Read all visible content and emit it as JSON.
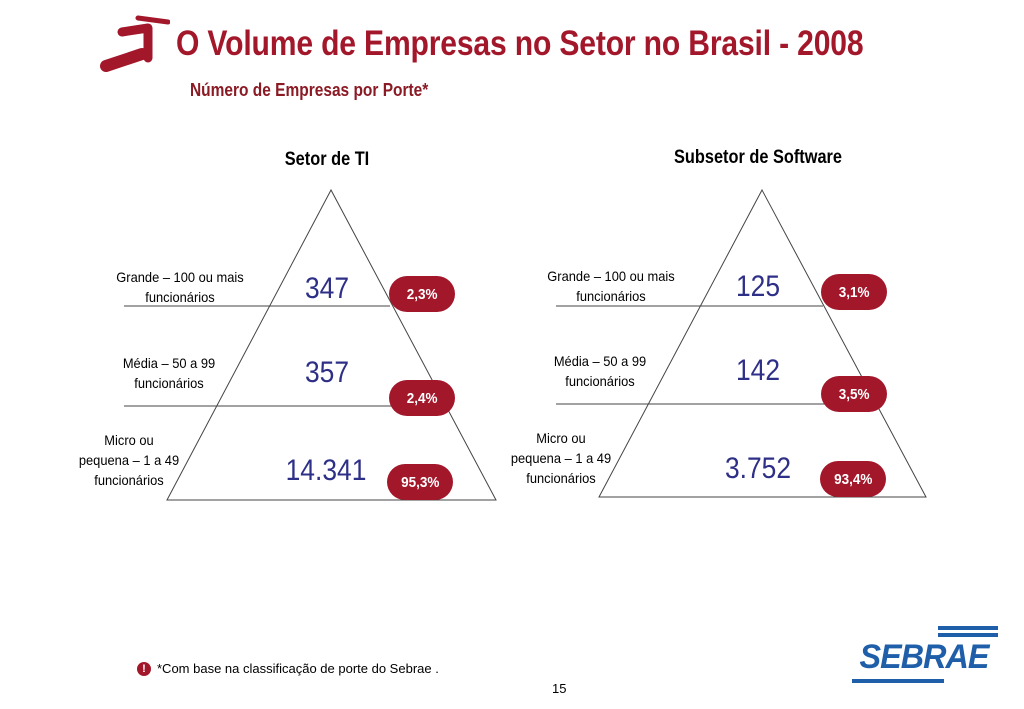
{
  "header": {
    "title": "O Volume de Empresas no Setor no Brasil - 2008",
    "subtitle": "Número de Empresas por Porte*"
  },
  "colors": {
    "accent": "#a3172b",
    "count_text": "#2e2f86",
    "logo_blue": "#1f5ea8"
  },
  "pyramids": [
    {
      "title": "Setor de TI",
      "levels": [
        {
          "label_line1": "Grande – 100 ou mais",
          "label_line2": "funcionários",
          "label_line3": "",
          "count": "347",
          "share": "2,3%"
        },
        {
          "label_line1": "Média – 50 a 99",
          "label_line2": "funcionários",
          "label_line3": "",
          "count": "357",
          "share": "2,4%"
        },
        {
          "label_line1": "Micro ou",
          "label_line2": "pequena – 1 a 49",
          "label_line3": "funcionários",
          "count": "14.341",
          "share": "95,3%"
        }
      ]
    },
    {
      "title": "Subsetor de Software",
      "levels": [
        {
          "label_line1": "Grande – 100 ou mais",
          "label_line2": "funcionários",
          "label_line3": "",
          "count": "125",
          "share": "3,1%"
        },
        {
          "label_line1": "Média – 50 a 99",
          "label_line2": "funcionários",
          "label_line3": "",
          "count": "142",
          "share": "3,5%"
        },
        {
          "label_line1": "Micro ou",
          "label_line2": "pequena – 1 a 49",
          "label_line3": "funcionários",
          "count": "3.752",
          "share": "93,4%"
        }
      ]
    }
  ],
  "footer": {
    "footnote": "*Com base na classificação de porte do Sebrae .",
    "page_number": "15",
    "logo_text": "SEBRAE",
    "icon": "exclamation-icon"
  }
}
